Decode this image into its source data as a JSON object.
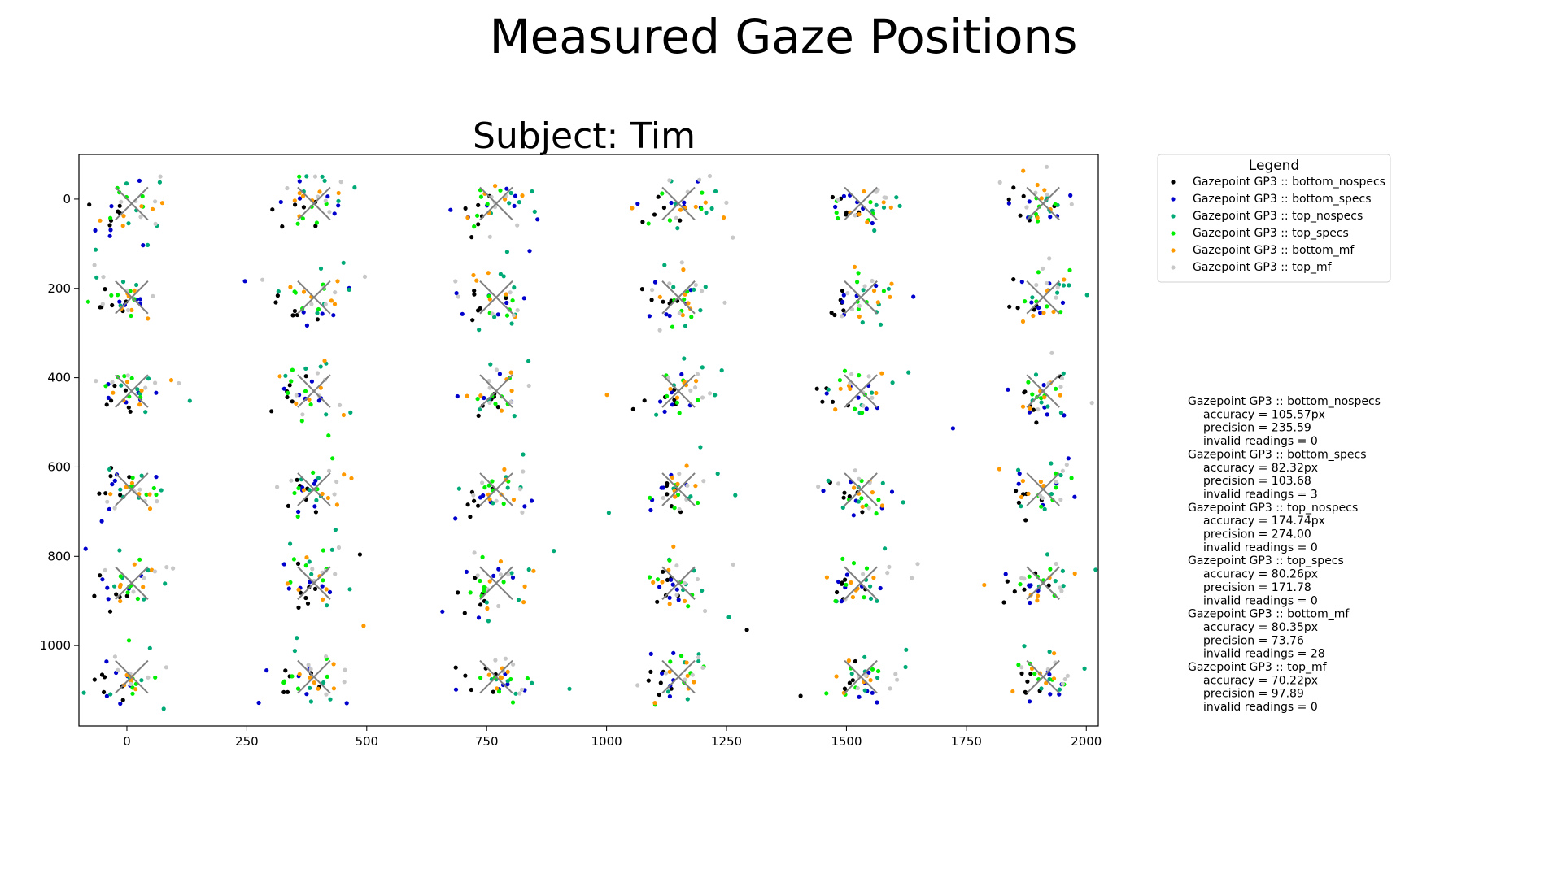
{
  "chart_data": {
    "type": "scatter",
    "title": "Measured Gaze Positions",
    "subtitle": "Subject: Tim",
    "xlabel": "",
    "ylabel": "",
    "xlim": [
      -100,
      2025
    ],
    "ylim": [
      1180,
      -100
    ],
    "y_inverted": true,
    "xticks": [
      0,
      250,
      500,
      750,
      1000,
      1250,
      1500,
      1750,
      2000
    ],
    "yticks": [
      0,
      200,
      400,
      600,
      800,
      1000
    ],
    "grid": false,
    "legend": {
      "title": "Legend",
      "position": "outside-top-right"
    },
    "targets": {
      "marker": "x",
      "color": "#808080",
      "x": [
        10,
        390,
        770,
        1150,
        1530,
        1910
      ],
      "y": [
        10,
        220,
        430,
        650,
        860,
        1070
      ]
    },
    "series": [
      {
        "name": "Gazepoint GP3 :: bottom_nospecs",
        "color": "#000000",
        "offset": [
          -35,
          15
        ],
        "spread": [
          26,
          24
        ]
      },
      {
        "name": "Gazepoint GP3 :: bottom_specs",
        "color": "#0000cc",
        "offset": [
          -15,
          10
        ],
        "spread": [
          38,
          30
        ]
      },
      {
        "name": "Gazepoint GP3 :: top_nospecs",
        "color": "#00aa77",
        "offset": [
          20,
          -5
        ],
        "spread": [
          42,
          40
        ]
      },
      {
        "name": "Gazepoint GP3 :: top_specs",
        "color": "#00ee00",
        "offset": [
          -5,
          0
        ],
        "spread": [
          30,
          28
        ]
      },
      {
        "name": "Gazepoint GP3 :: bottom_mf",
        "color": "#ff9900",
        "offset": [
          5,
          0
        ],
        "spread": [
          34,
          26
        ]
      },
      {
        "name": "Gazepoint GP3 :: top_mf",
        "color": "#c8c8c8",
        "offset": [
          10,
          -8
        ],
        "spread": [
          40,
          30
        ]
      }
    ],
    "stats": [
      {
        "name": "Gazepoint GP3 :: bottom_nospecs",
        "accuracy": "accuracy = 105.57px",
        "precision": "precision = 235.59",
        "invalid": "invalid readings = 0"
      },
      {
        "name": "Gazepoint GP3 :: bottom_specs",
        "accuracy": "accuracy = 82.32px",
        "precision": "precision = 103.68",
        "invalid": "invalid readings = 3"
      },
      {
        "name": "Gazepoint GP3 :: top_nospecs",
        "accuracy": "accuracy = 174.74px",
        "precision": "precision = 274.00",
        "invalid": "invalid readings = 0"
      },
      {
        "name": "Gazepoint GP3 :: top_specs",
        "accuracy": "accuracy = 80.26px",
        "precision": "precision = 171.78",
        "invalid": "invalid readings = 0"
      },
      {
        "name": "Gazepoint GP3 :: bottom_mf",
        "accuracy": "accuracy = 80.35px",
        "precision": "precision = 73.76",
        "invalid": "invalid readings = 28"
      },
      {
        "name": "Gazepoint GP3 :: top_mf",
        "accuracy": "accuracy = 70.22px",
        "precision": "precision = 97.89",
        "invalid": "invalid readings = 0"
      }
    ]
  }
}
